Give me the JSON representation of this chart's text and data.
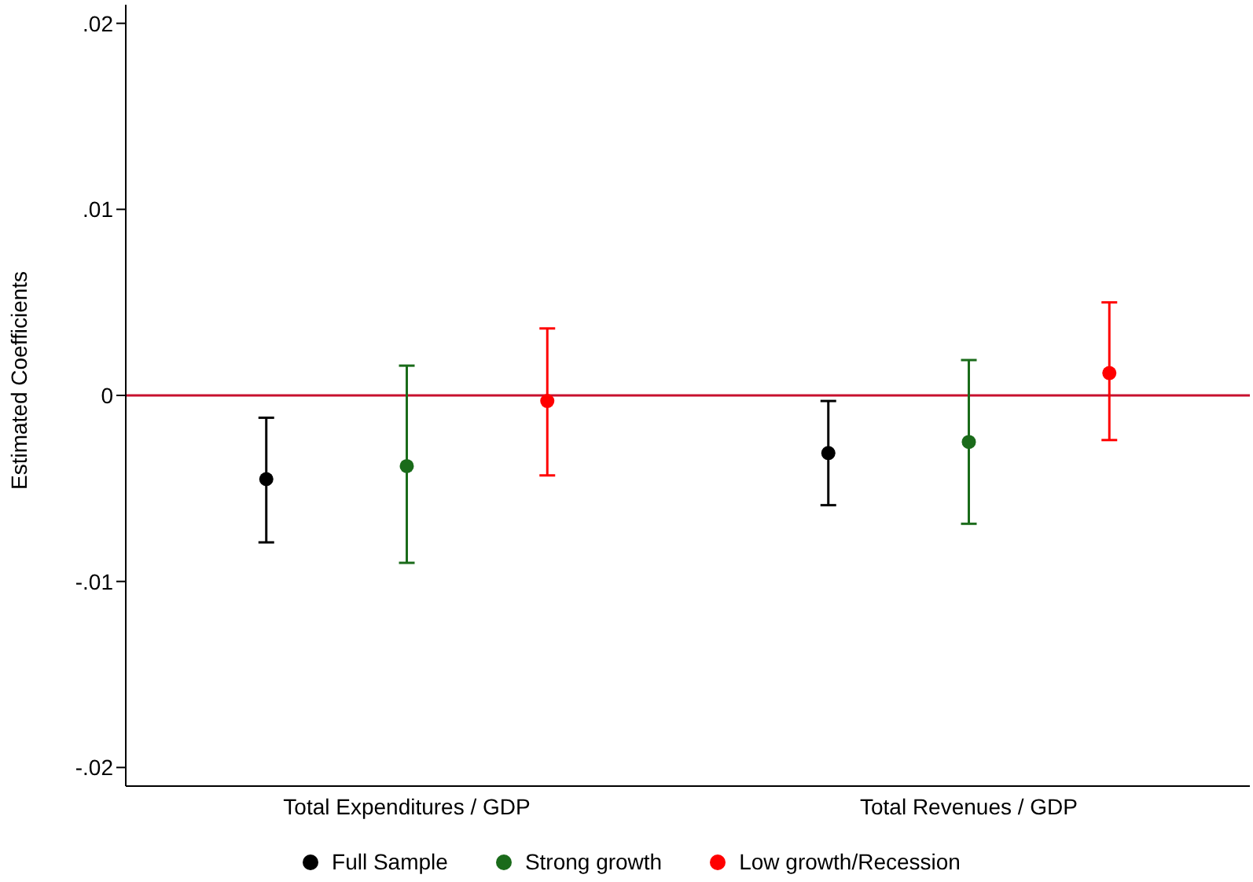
{
  "chart_data": {
    "type": "scatter",
    "ylabel": "Estimated Coefficients",
    "categories": [
      "Total Expenditures / GDP",
      "Total Revenues / GDP"
    ],
    "ylim": [
      -0.021,
      0.021
    ],
    "yticks": [
      {
        "value": -0.02,
        "label": "-.02"
      },
      {
        "value": -0.01,
        "label": "-.01"
      },
      {
        "value": 0,
        "label": "0"
      },
      {
        "value": 0.01,
        "label": ".01"
      },
      {
        "value": 0.02,
        "label": ".02"
      }
    ],
    "series": [
      {
        "name": "Full Sample",
        "color": "#000000",
        "values": [
          -0.0045,
          -0.0031
        ],
        "errors": [
          [
            -0.0079,
            -0.0012
          ],
          [
            -0.0059,
            -0.0003
          ]
        ]
      },
      {
        "name": "Strong growth",
        "color": "#1a6b1a",
        "values": [
          -0.0038,
          -0.0025
        ],
        "errors": [
          [
            -0.009,
            0.0016
          ],
          [
            -0.0069,
            0.0019
          ]
        ]
      },
      {
        "name": "Low growth/Recession",
        "color": "#ff0000",
        "values": [
          -0.0003,
          0.0012
        ],
        "errors": [
          [
            -0.0043,
            0.0036
          ],
          [
            -0.0024,
            0.005
          ]
        ]
      }
    ],
    "ref_lines": [
      {
        "axis": "y",
        "value": 0,
        "color": "#c8102e"
      }
    ],
    "marker": "circle",
    "grid": false,
    "legend": "bottom"
  }
}
